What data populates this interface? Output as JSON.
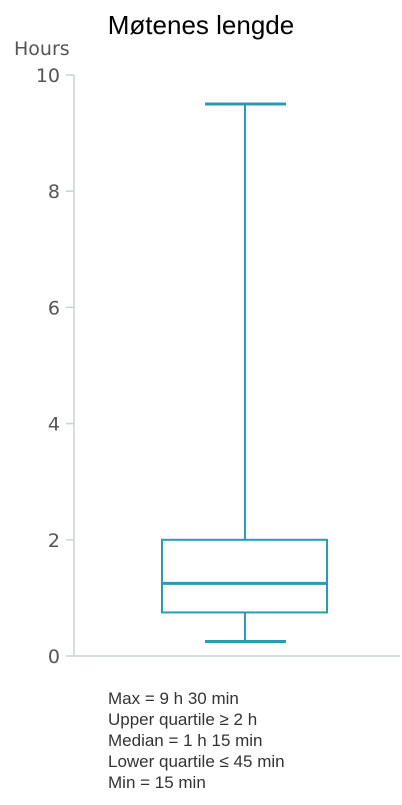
{
  "chart_data": {
    "type": "boxplot",
    "title": "Møtenes lengde",
    "ylabel": "Hours",
    "ylim": [
      0,
      10
    ],
    "yticks": [
      "0",
      "2",
      "4",
      "6",
      "8",
      "10"
    ],
    "box": {
      "min": 0.25,
      "q1": 0.75,
      "median": 1.25,
      "q3": 2,
      "max": 9.5
    },
    "color": "#2a9bb3",
    "axis_color": "#c9d1dc",
    "grid": false
  },
  "stats": [
    "Max = 9 h 30 min",
    "Upper quartile ≥ 2 h",
    "Median = 1 h 15 min",
    "Lower quartile ≤ 45 min",
    "Min = 15 min"
  ]
}
